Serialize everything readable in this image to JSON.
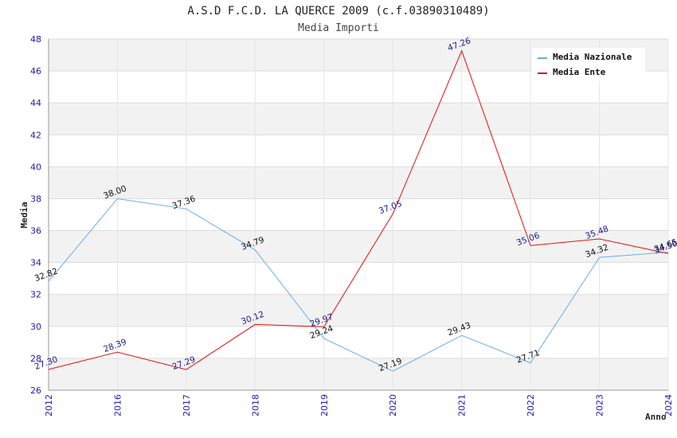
{
  "chart_data": {
    "type": "line",
    "title": "A.S.D F.C.D. LA QUERCE 2009 (c.f.03890310489)",
    "subtitle": "Media Importi",
    "xlabel": "Anno",
    "ylabel": "Media",
    "ylim": [
      26,
      48
    ],
    "yticks": [
      "26",
      "28",
      "30",
      "32",
      "34",
      "36",
      "38",
      "40",
      "42",
      "44",
      "46",
      "48"
    ],
    "categories": [
      "2012",
      "2016",
      "2017",
      "2018",
      "2019",
      "2020",
      "2021",
      "2022",
      "2023",
      "2024"
    ],
    "legend_position": "top-right",
    "series": [
      {
        "name": "Media Nazionale",
        "color": "#6aaee8",
        "values": [
          32.82,
          38.0,
          37.36,
          34.79,
          29.24,
          27.19,
          29.43,
          27.71,
          34.32,
          34.65
        ],
        "labels": [
          "32.82",
          "38.00",
          "37.36",
          "34.79",
          "29.24",
          "27.19",
          "29.43",
          "27.71",
          "34.32",
          "34.65"
        ]
      },
      {
        "name": "Media Ente",
        "color": "#e01010",
        "values": [
          27.3,
          28.39,
          27.29,
          30.12,
          29.97,
          37.05,
          47.26,
          35.06,
          35.48,
          34.56
        ],
        "labels": [
          "27.30",
          "28.39",
          "27.29",
          "30.12",
          "29.97",
          "37.05",
          "47.26",
          "35.06",
          "35.48",
          "34.56"
        ]
      }
    ]
  }
}
